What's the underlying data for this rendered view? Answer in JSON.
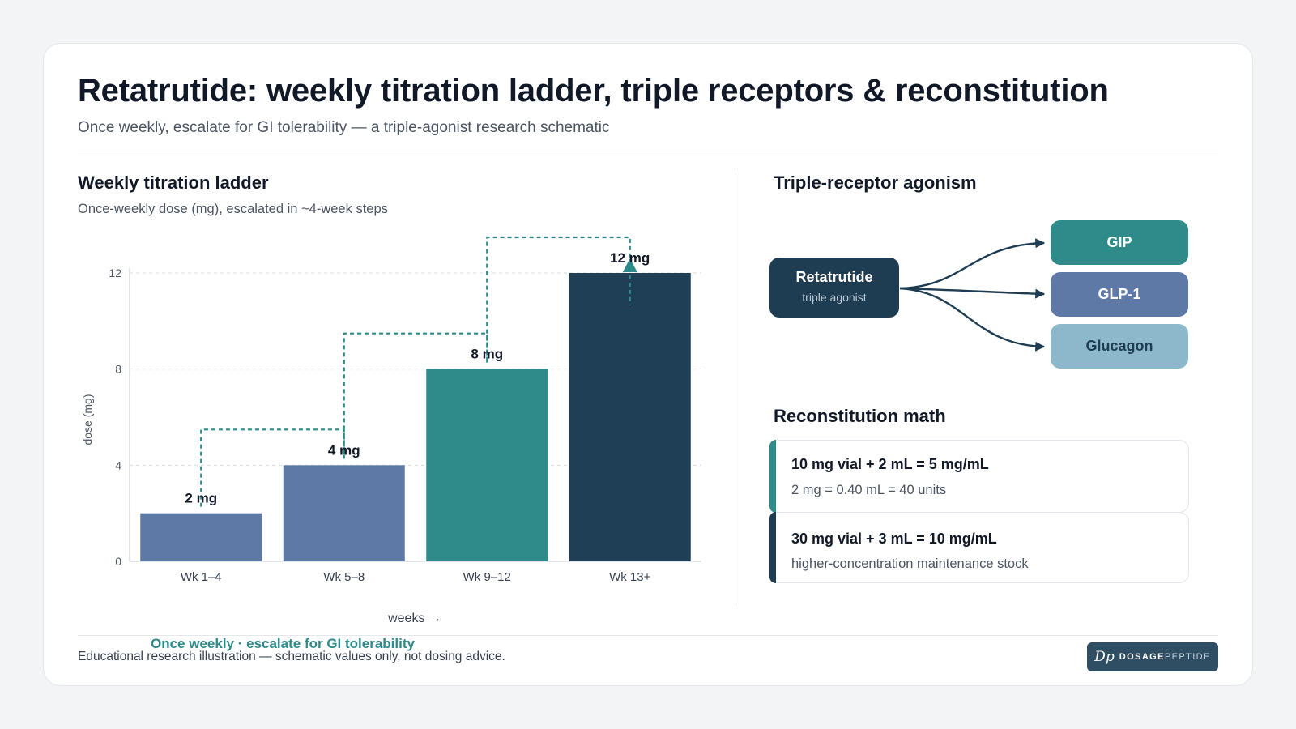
{
  "header": {
    "title": "Retatrutide: weekly titration ladder, triple receptors & reconstitution",
    "subtitle": "Once weekly, escalate for GI tolerability — a triple-agonist research schematic"
  },
  "ladder": {
    "title": "Weekly titration ladder",
    "subtitle": "Once-weekly dose (mg), escalated in ~4-week steps"
  },
  "chart_data": {
    "type": "bar",
    "categories": [
      "Wk 1–4",
      "Wk 5–8",
      "Wk 9–12",
      "Wk 13+"
    ],
    "values": [
      2,
      4,
      8,
      12
    ],
    "data_labels": [
      "2 mg",
      "4 mg",
      "8 mg",
      "12 mg"
    ],
    "xlabel": "weeks →",
    "ylabel": "dose (mg)",
    "ylim": [
      0,
      12
    ],
    "yticks": [
      0,
      4,
      8,
      12
    ],
    "grid": true,
    "bar_colors": [
      "#5f79a7",
      "#5f79a7",
      "#2e8b89",
      "#1f3f56"
    ],
    "step_line_color": "#2c8a8a"
  },
  "receptors": {
    "title": "Triple-receptor agonism",
    "source": {
      "name": "Retatrutide",
      "role": "triple agonist",
      "color": "#1f3d52"
    },
    "targets": [
      {
        "label": "GIP",
        "color": "#2e8b89",
        "text_color": "#ffffff"
      },
      {
        "label": "GLP-1",
        "color": "#5f79a7",
        "text_color": "#ffffff"
      },
      {
        "label": "Glucagon",
        "color": "#8db8cb",
        "text_color": "#1f3d52"
      }
    ]
  },
  "reconstitution": {
    "title": "Reconstitution math",
    "items": [
      {
        "equation": "10 mg vial + 2 mL = 5 mg/mL",
        "note": "2 mg = 0.40 mL = 40 units",
        "accent": "#2e8b89"
      },
      {
        "equation": "30 mg vial + 3 mL = 10 mg/mL",
        "note": "higher-concentration maintenance stock",
        "accent": "#1f3d52"
      }
    ]
  },
  "footer": {
    "accent": "Once weekly · escalate for GI tolerability",
    "disclaimer": "Educational research illustration — schematic values only, not dosing advice.",
    "brand_mark": "Dp",
    "brand_bold": "DOSAGE",
    "brand_light": "PEPTIDE"
  }
}
